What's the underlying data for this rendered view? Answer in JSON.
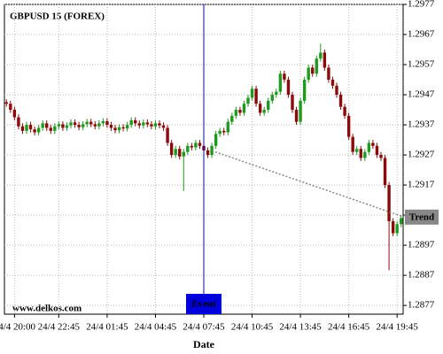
{
  "chart_data": {
    "type": "candlestick",
    "title": "GBPUSD 15 (FOREX)",
    "footer": "www.delkos.com",
    "x_label": "Date",
    "categories": [
      null,
      null,
      "24/4 20:00",
      null,
      null,
      null,
      null,
      null,
      null,
      null,
      null,
      null,
      null,
      "24/4 22:45",
      null,
      null,
      null,
      null,
      null,
      null,
      null,
      null,
      null,
      null,
      null,
      "24/4 01:45",
      null,
      null,
      null,
      null,
      null,
      null,
      null,
      null,
      null,
      null,
      null,
      "24/4 04:45",
      null,
      null,
      null,
      null,
      null,
      null,
      null,
      null,
      null,
      null,
      null,
      "24/4 07:45",
      null,
      null,
      null,
      null,
      null,
      null,
      null,
      null,
      null,
      null,
      null,
      "24/4 10:45",
      null,
      null,
      null,
      null,
      null,
      null,
      null,
      null,
      null,
      null,
      null,
      "24/4 13:45",
      null,
      null,
      null,
      null,
      null,
      null,
      null,
      null,
      null,
      null,
      null,
      "24/4 16:45",
      null,
      null,
      null,
      null,
      null,
      null,
      null,
      null,
      null,
      null,
      null,
      "24/4 19:45",
      null
    ],
    "open": [
      1.29445,
      1.2944,
      1.2942,
      1.29395,
      1.29365,
      1.2935,
      1.2937,
      1.29355,
      1.29345,
      1.2936,
      1.29375,
      1.2936,
      1.2935,
      1.29365,
      1.29372,
      1.2936,
      1.29368,
      1.29378,
      1.2937,
      1.29362,
      1.29372,
      1.2938,
      1.29372,
      1.29365,
      1.29375,
      1.29382,
      1.2937,
      1.2936,
      1.29352,
      1.29362,
      1.29358,
      1.2937,
      1.29385,
      1.29375,
      1.29368,
      1.29378,
      1.29372,
      1.29365,
      1.29375,
      1.29368,
      1.2936,
      1.2931,
      1.2927,
      1.2929,
      1.29265,
      1.2928,
      1.293,
      1.29295,
      1.2931,
      1.293,
      1.29285,
      1.2927,
      1.293,
      1.2934,
      1.2935,
      1.29345,
      1.2938,
      1.294,
      1.2942,
      1.2941,
      1.2944,
      1.2946,
      1.2949,
      1.2944,
      1.2941,
      1.2942,
      1.2945,
      1.2947,
      1.2948,
      1.2954,
      1.2952,
      1.2947,
      1.2942,
      1.2938,
      1.2945,
      1.2952,
      1.2956,
      1.2954,
      1.2959,
      1.2961,
      1.2956,
      1.2952,
      1.295,
      1.2947,
      1.2943,
      1.294,
      1.2933,
      1.2928,
      1.2929,
      1.2926,
      1.2928,
      1.2931,
      1.293,
      1.2927,
      1.2926,
      1.2917,
      1.2905,
      1.2901,
      1.2904
    ],
    "high": [
      1.29455,
      1.2945,
      1.2943,
      1.29405,
      1.29375,
      1.2938,
      1.2938,
      1.29365,
      1.2937,
      1.29385,
      1.29385,
      1.2937,
      1.29375,
      1.29382,
      1.29382,
      1.29378,
      1.29388,
      1.29388,
      1.2938,
      1.29382,
      1.2939,
      1.2939,
      1.29382,
      1.29385,
      1.29392,
      1.29392,
      1.2938,
      1.2937,
      1.29372,
      1.29372,
      1.2938,
      1.29395,
      1.29395,
      1.29385,
      1.29388,
      1.29388,
      1.29382,
      1.29385,
      1.29385,
      1.29378,
      1.2937,
      1.2932,
      1.293,
      1.293,
      1.2929,
      1.2931,
      1.2931,
      1.2932,
      1.2932,
      1.2931,
      1.29295,
      1.2931,
      1.2935,
      1.2936,
      1.2936,
      1.2939,
      1.2941,
      1.2943,
      1.2943,
      1.2945,
      1.2947,
      1.295,
      1.295,
      1.2945,
      1.2943,
      1.2946,
      1.2948,
      1.2949,
      1.2955,
      1.2955,
      1.2953,
      1.2948,
      1.2943,
      1.2946,
      1.2953,
      1.2957,
      1.2957,
      1.296,
      1.2964,
      1.2962,
      1.2957,
      1.2953,
      1.2951,
      1.2948,
      1.2944,
      1.2941,
      1.2934,
      1.293,
      1.293,
      1.2929,
      1.2932,
      1.2932,
      1.2931,
      1.2928,
      1.2927,
      1.2918,
      1.2906,
      1.2905,
      1.2907
    ],
    "low": [
      1.2943,
      1.2941,
      1.29385,
      1.29355,
      1.2934,
      1.2934,
      1.29345,
      1.29335,
      1.29335,
      1.2935,
      1.2935,
      1.2934,
      1.2934,
      1.29355,
      1.2935,
      1.2935,
      1.29358,
      1.2936,
      1.29352,
      1.29352,
      1.29362,
      1.29362,
      1.29355,
      1.29355,
      1.29365,
      1.2936,
      1.2935,
      1.29342,
      1.29342,
      1.29348,
      1.29348,
      1.2936,
      1.29365,
      1.29358,
      1.29358,
      1.29362,
      1.29355,
      1.29355,
      1.29358,
      1.2935,
      1.293,
      1.2926,
      1.2926,
      1.29255,
      1.2915,
      1.2927,
      1.29285,
      1.29285,
      1.2929,
      1.29275,
      1.2926,
      1.2926,
      1.2929,
      1.2933,
      1.29335,
      1.29335,
      1.2937,
      1.2939,
      1.294,
      1.294,
      1.2943,
      1.2945,
      1.2943,
      1.294,
      1.294,
      1.2941,
      1.2944,
      1.2946,
      1.2947,
      1.2951,
      1.2946,
      1.2941,
      1.2937,
      1.2937,
      1.2944,
      1.2951,
      1.2953,
      1.2953,
      1.2958,
      1.2955,
      1.2951,
      1.2949,
      1.2946,
      1.2942,
      1.2939,
      1.2932,
      1.2927,
      1.2927,
      1.2925,
      1.2925,
      1.2927,
      1.2929,
      1.2926,
      1.2925,
      1.2916,
      1.28887,
      1.29,
      1.29,
      1.2903
    ],
    "close": [
      1.2944,
      1.2942,
      1.29395,
      1.29365,
      1.2935,
      1.2937,
      1.29355,
      1.29345,
      1.2936,
      1.29375,
      1.2936,
      1.2935,
      1.29365,
      1.29372,
      1.2936,
      1.29368,
      1.29378,
      1.2937,
      1.29362,
      1.29372,
      1.2938,
      1.29372,
      1.29365,
      1.29375,
      1.29382,
      1.2937,
      1.2936,
      1.29352,
      1.29362,
      1.29358,
      1.2937,
      1.29385,
      1.29375,
      1.29368,
      1.29378,
      1.29372,
      1.29365,
      1.29375,
      1.29368,
      1.2936,
      1.2931,
      1.2927,
      1.2929,
      1.29265,
      1.2928,
      1.293,
      1.29295,
      1.2931,
      1.293,
      1.29285,
      1.2927,
      1.293,
      1.2934,
      1.2935,
      1.29345,
      1.2938,
      1.294,
      1.2942,
      1.2941,
      1.2944,
      1.2946,
      1.2949,
      1.2944,
      1.2941,
      1.2942,
      1.2945,
      1.2947,
      1.2948,
      1.2954,
      1.2952,
      1.2947,
      1.2942,
      1.2938,
      1.2945,
      1.2952,
      1.2956,
      1.2954,
      1.2959,
      1.2961,
      1.2956,
      1.2952,
      1.295,
      1.2947,
      1.2943,
      1.294,
      1.2933,
      1.2928,
      1.2929,
      1.2926,
      1.2928,
      1.2931,
      1.293,
      1.2927,
      1.2926,
      1.2917,
      1.2905,
      1.2901,
      1.2904,
      1.2906
    ],
    "up_color": "#1f9a1f",
    "down_color": "#8b0a0a",
    "ylim": [
      1.28741,
      1.2977
    ],
    "yticks": [
      1.2877,
      1.2887,
      1.2897,
      1.2907,
      1.2917,
      1.2927,
      1.2937,
      1.2947,
      1.2957,
      1.2967,
      1.2977
    ],
    "grid": true,
    "event": {
      "label": "Event",
      "category": "24/4 07:45",
      "color": "#0000dd"
    },
    "trend": {
      "label": "Trend",
      "values": [
        1.2928,
        1.29065
      ],
      "color": "#888888"
    }
  }
}
